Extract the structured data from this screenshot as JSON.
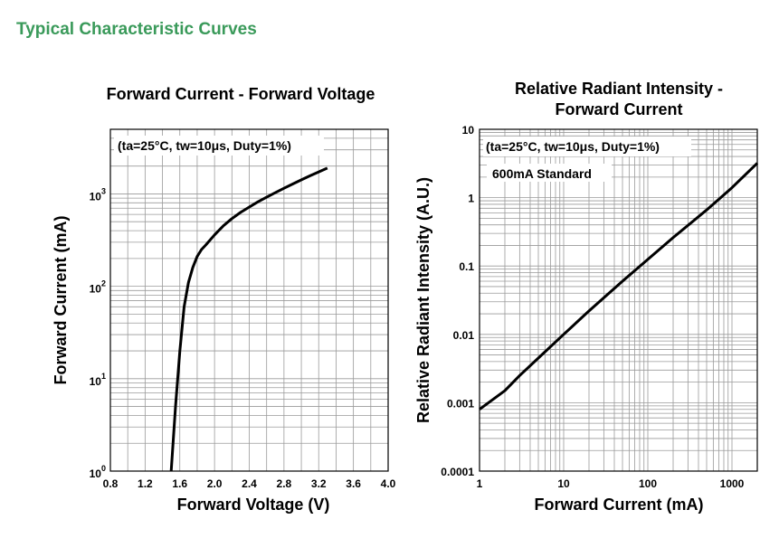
{
  "page_title": "Typical Characteristic Curves",
  "chart_data": [
    {
      "type": "line",
      "title": "Forward Current - Forward Voltage",
      "xlabel": "Forward Voltage (V)",
      "ylabel": "Forward Current (mA)",
      "xlim": [
        0.8,
        4.0
      ],
      "ylim": [
        1,
        5000
      ],
      "yscale": "log",
      "grid": true,
      "annotation": "(ta=25°C, tw=10μs, Duty=1%)",
      "x_ticks": [
        "0.8",
        "1.2",
        "1.6",
        "2.0",
        "2.4",
        "2.8",
        "3.2",
        "3.6",
        "4.0"
      ],
      "y_tick_base": "10",
      "y_tick_exps": [
        "0",
        "1",
        "2",
        "3"
      ],
      "series": [
        {
          "x": [
            1.5,
            1.55,
            1.6,
            1.65,
            1.7,
            1.75,
            1.8,
            1.85,
            1.9,
            2.0,
            2.1,
            2.2,
            2.3,
            2.4,
            2.5,
            2.6,
            2.7,
            2.8,
            2.9,
            3.0,
            3.1,
            3.2,
            3.3
          ],
          "y": [
            1,
            5,
            20,
            60,
            110,
            160,
            210,
            250,
            280,
            360,
            450,
            540,
            630,
            720,
            820,
            920,
            1030,
            1150,
            1280,
            1420,
            1570,
            1730,
            1900
          ]
        }
      ]
    },
    {
      "type": "line",
      "title": "Relative Radiant Intensity -\nForward Current",
      "title_lines": [
        "Relative Radiant Intensity -",
        "Forward Current"
      ],
      "xlabel": "Forward Current (mA)",
      "ylabel": "Relative Radiant Intensity (A.U.)",
      "xlim": [
        1,
        2000
      ],
      "ylim": [
        0.0001,
        10
      ],
      "xscale": "log",
      "yscale": "log",
      "grid": true,
      "annotation": "(ta=25°C, tw=10μs, Duty=1%)",
      "annotation2": "600mA Standard",
      "x_ticks": [
        "1",
        "10",
        "100",
        "1000"
      ],
      "y_ticks": [
        "10",
        "1",
        "0.1",
        "0.01",
        "0.001",
        "0.0001"
      ],
      "series": [
        {
          "x": [
            1,
            2,
            3,
            5,
            10,
            20,
            50,
            100,
            200,
            500,
            1000,
            2000
          ],
          "y": [
            0.0008,
            0.0015,
            0.0025,
            0.0045,
            0.01,
            0.022,
            0.06,
            0.125,
            0.26,
            0.66,
            1.4,
            3.2
          ]
        }
      ]
    }
  ]
}
